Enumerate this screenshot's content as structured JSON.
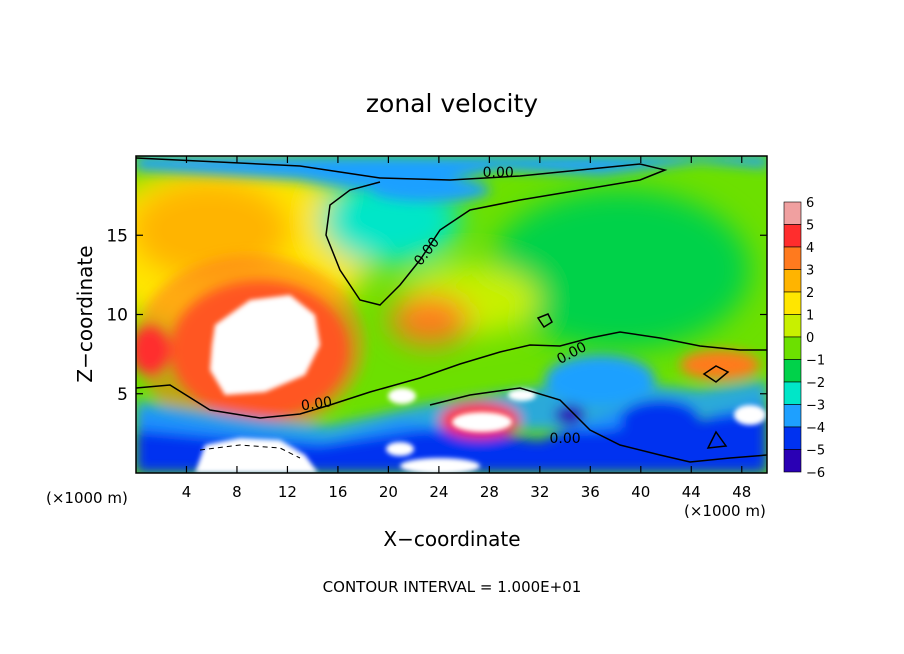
{
  "chart_data": {
    "type": "heatmap",
    "title": "zonal velocity",
    "xlabel": "X−coordinate",
    "ylabel": "Z−coordinate",
    "x_unit_left": "(×1000 m)",
    "x_unit_right": "(×1000 m)",
    "footer": "CONTOUR INTERVAL = 1.000E+01",
    "xlim": [
      0,
      50
    ],
    "ylim": [
      0,
      20
    ],
    "x_ticks": [
      4,
      8,
      12,
      16,
      20,
      24,
      28,
      32,
      36,
      40,
      44,
      48
    ],
    "y_ticks": [
      5,
      10,
      15
    ],
    "colorbar": {
      "range": [
        -6,
        6
      ],
      "tick_labels": [
        "6",
        "5",
        "4",
        "3",
        "2",
        "1",
        "0",
        "−1",
        "−2",
        "−3",
        "−4",
        "−5",
        "−6"
      ],
      "colors": [
        "#f0a0a0",
        "#ff2d2d",
        "#ff7a1e",
        "#ffb400",
        "#ffe600",
        "#c8f000",
        "#6ce000",
        "#00d24a",
        "#00e6c8",
        "#1ea0ff",
        "#0032f0",
        "#2a00b4",
        "#6e1cae"
      ]
    },
    "contour_labels": [
      {
        "text": "0.00",
        "x": 28.7,
        "y": 19.0,
        "angle": 0
      },
      {
        "text": "0.00",
        "x": 23.0,
        "y": 14.0,
        "angle": -52
      },
      {
        "text": "0.00",
        "x": 14.3,
        "y": 4.4,
        "angle": -8
      },
      {
        "text": "0.00",
        "x": 34.5,
        "y": 7.6,
        "angle": -28
      },
      {
        "text": "0.00",
        "x": 34.0,
        "y": 2.2,
        "angle": 0
      }
    ],
    "field_regions": [
      {
        "label": "positive max",
        "x": 10.5,
        "y": 7.5,
        "value": 7
      },
      {
        "label": "upper-left positive",
        "x": 7,
        "y": 15,
        "value": 3
      },
      {
        "label": "mid negative",
        "x": 19,
        "y": 16.5,
        "value": -2
      },
      {
        "label": "right-center",
        "x": 40,
        "y": 12,
        "value": 0.5
      },
      {
        "label": "bottom negative band",
        "x": 25,
        "y": 2,
        "value": -4
      }
    ]
  }
}
